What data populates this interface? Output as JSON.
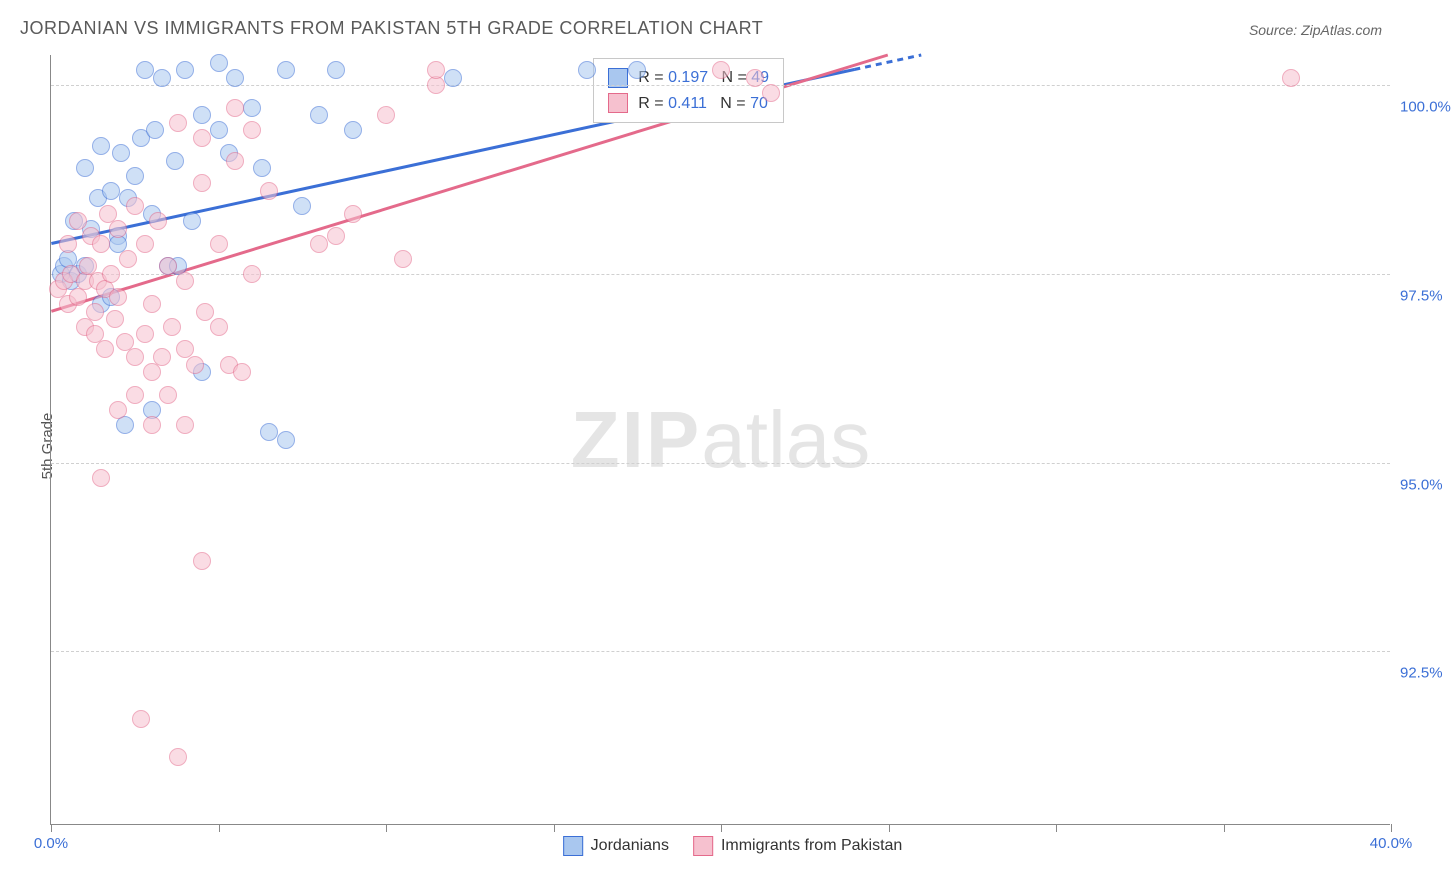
{
  "title": "JORDANIAN VS IMMIGRANTS FROM PAKISTAN 5TH GRADE CORRELATION CHART",
  "source": "Source: ZipAtlas.com",
  "watermark": {
    "bold": "ZIP",
    "light": "atlas"
  },
  "ylabel": "5th Grade",
  "chart": {
    "type": "scatter",
    "xlim": [
      0,
      40
    ],
    "ylim": [
      90.2,
      100.4
    ],
    "xtick_positions": [
      0,
      5,
      10,
      15,
      20,
      25,
      30,
      35,
      40
    ],
    "xtick_labels": {
      "0": "0.0%",
      "40": "40.0%"
    },
    "ytick_positions": [
      92.5,
      95.0,
      97.5,
      100.0
    ],
    "ytick_labels": [
      "92.5%",
      "95.0%",
      "97.5%",
      "100.0%"
    ],
    "background_color": "#ffffff",
    "grid_color": "#d0d0d0",
    "marker_radius": 9,
    "marker_opacity": 0.55,
    "series": [
      {
        "name": "Jordanians",
        "color_fill": "#a9c7ef",
        "color_stroke": "#3b6fd6",
        "R": "0.197",
        "N": "49",
        "trend": {
          "x1": 0,
          "y1": 97.9,
          "x2": 26,
          "y2": 100.4,
          "dash_after_x": 24
        },
        "points": [
          [
            0.3,
            97.5
          ],
          [
            0.4,
            97.6
          ],
          [
            0.5,
            97.7
          ],
          [
            0.6,
            97.4
          ],
          [
            0.8,
            97.5
          ],
          [
            0.7,
            98.2
          ],
          [
            1.0,
            97.6
          ],
          [
            1.2,
            98.1
          ],
          [
            1.0,
            98.9
          ],
          [
            1.4,
            98.5
          ],
          [
            1.5,
            99.2
          ],
          [
            1.8,
            98.6
          ],
          [
            2.0,
            98.0
          ],
          [
            2.1,
            99.1
          ],
          [
            2.3,
            98.5
          ],
          [
            2.5,
            98.8
          ],
          [
            2.7,
            99.3
          ],
          [
            2.8,
            100.2
          ],
          [
            3.0,
            98.3
          ],
          [
            3.1,
            99.4
          ],
          [
            3.3,
            100.1
          ],
          [
            3.5,
            97.6
          ],
          [
            3.7,
            99.0
          ],
          [
            4.0,
            100.2
          ],
          [
            4.2,
            98.2
          ],
          [
            4.5,
            99.6
          ],
          [
            5.0,
            100.3
          ],
          [
            5.3,
            99.1
          ],
          [
            5.5,
            100.1
          ],
          [
            6.0,
            99.7
          ],
          [
            6.3,
            98.9
          ],
          [
            7.0,
            100.2
          ],
          [
            7.5,
            98.4
          ],
          [
            8.0,
            99.6
          ],
          [
            8.5,
            100.2
          ],
          [
            3.0,
            95.7
          ],
          [
            2.2,
            95.5
          ],
          [
            4.5,
            96.2
          ],
          [
            1.5,
            97.1
          ],
          [
            2.0,
            97.9
          ],
          [
            3.8,
            97.6
          ],
          [
            5.0,
            99.4
          ],
          [
            6.5,
            95.4
          ],
          [
            7.0,
            95.3
          ],
          [
            16.0,
            100.2
          ],
          [
            17.5,
            100.2
          ],
          [
            12.0,
            100.1
          ],
          [
            9.0,
            99.4
          ],
          [
            1.8,
            97.2
          ]
        ]
      },
      {
        "name": "Immigrants from Pakistan",
        "color_fill": "#f6c1cf",
        "color_stroke": "#e46a8b",
        "R": "0.411",
        "N": "70",
        "trend": {
          "x1": 0,
          "y1": 97.0,
          "x2": 25,
          "y2": 100.4,
          "dash_after_x": null
        },
        "points": [
          [
            0.2,
            97.3
          ],
          [
            0.4,
            97.4
          ],
          [
            0.5,
            97.1
          ],
          [
            0.6,
            97.5
          ],
          [
            0.8,
            97.2
          ],
          [
            1.0,
            97.4
          ],
          [
            1.1,
            97.6
          ],
          [
            1.3,
            97.0
          ],
          [
            1.4,
            97.4
          ],
          [
            1.6,
            97.3
          ],
          [
            1.8,
            97.5
          ],
          [
            2.0,
            97.2
          ],
          [
            0.5,
            97.9
          ],
          [
            0.8,
            98.2
          ],
          [
            1.2,
            98.0
          ],
          [
            1.5,
            97.9
          ],
          [
            1.7,
            98.3
          ],
          [
            2.0,
            98.1
          ],
          [
            2.3,
            97.7
          ],
          [
            2.5,
            98.4
          ],
          [
            2.8,
            97.9
          ],
          [
            3.0,
            97.1
          ],
          [
            3.2,
            98.2
          ],
          [
            3.5,
            97.6
          ],
          [
            1.0,
            96.8
          ],
          [
            1.3,
            96.7
          ],
          [
            1.6,
            96.5
          ],
          [
            1.9,
            96.9
          ],
          [
            2.2,
            96.6
          ],
          [
            2.5,
            96.4
          ],
          [
            2.8,
            96.7
          ],
          [
            3.0,
            96.2
          ],
          [
            3.3,
            96.4
          ],
          [
            3.6,
            96.8
          ],
          [
            4.0,
            96.5
          ],
          [
            4.3,
            96.3
          ],
          [
            4.6,
            97.0
          ],
          [
            5.0,
            96.8
          ],
          [
            5.3,
            96.3
          ],
          [
            5.7,
            96.2
          ],
          [
            2.0,
            95.7
          ],
          [
            2.5,
            95.9
          ],
          [
            3.0,
            95.5
          ],
          [
            3.5,
            95.9
          ],
          [
            4.0,
            95.5
          ],
          [
            1.5,
            94.8
          ],
          [
            4.5,
            93.7
          ],
          [
            2.7,
            91.6
          ],
          [
            3.8,
            91.1
          ],
          [
            8.5,
            98.0
          ],
          [
            8.0,
            97.9
          ],
          [
            6.5,
            98.6
          ],
          [
            6.0,
            97.5
          ],
          [
            5.5,
            99.0
          ],
          [
            5.0,
            97.9
          ],
          [
            4.5,
            98.7
          ],
          [
            4.0,
            97.4
          ],
          [
            3.8,
            99.5
          ],
          [
            4.5,
            99.3
          ],
          [
            5.5,
            99.7
          ],
          [
            6.0,
            99.4
          ],
          [
            11.5,
            100.0
          ],
          [
            11.5,
            100.2
          ],
          [
            21.0,
            100.1
          ],
          [
            21.5,
            99.9
          ],
          [
            20.0,
            100.2
          ],
          [
            37.0,
            100.1
          ],
          [
            10.0,
            99.6
          ],
          [
            10.5,
            97.7
          ],
          [
            9.0,
            98.3
          ]
        ]
      }
    ]
  },
  "legend_top": {
    "rows": [
      {
        "series_idx": 0,
        "text_prefix": "R = ",
        "text_mid": "   N = "
      },
      {
        "series_idx": 1,
        "text_prefix": "R = ",
        "text_mid": "   N = "
      }
    ]
  }
}
